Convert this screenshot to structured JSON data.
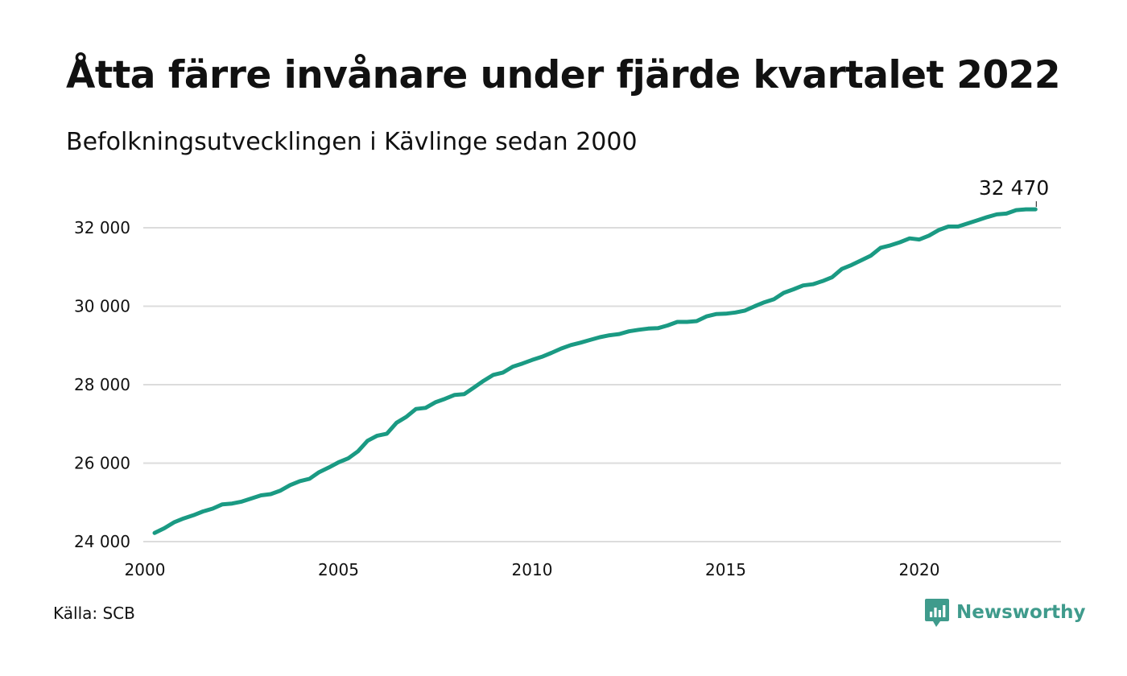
{
  "header": {
    "title": "Åtta färre invånare under fjärde kvartalet 2022",
    "subtitle": "Befolkningsutvecklingen i Kävlinge sedan 2000"
  },
  "footer": {
    "source": "Källa: SCB",
    "brand": "Newsworthy",
    "brand_icon": "newsworthy-chart-bubble-icon"
  },
  "colors": {
    "line": "#1a9a83",
    "grid": "#dcdcdc",
    "brand": "#3f9b8c",
    "text": "#111111"
  },
  "chart_data": {
    "type": "line",
    "title": "Åtta färre invånare under fjärde kvartalet 2022",
    "subtitle": "Befolkningsutvecklingen i Kävlinge sedan 2000",
    "xlabel": "",
    "ylabel": "",
    "xlim": [
      2000,
      2023.6
    ],
    "ylim": [
      24000,
      32800
    ],
    "x_ticks": [
      2000,
      2005,
      2010,
      2015,
      2020
    ],
    "x_tick_labels": [
      "2000",
      "2005",
      "2010",
      "2015",
      "2020"
    ],
    "y_ticks": [
      24000,
      26000,
      28000,
      30000,
      32000
    ],
    "y_tick_labels": [
      "24 000",
      "26 000",
      "28 000",
      "30 000",
      "32 000"
    ],
    "grid": "horizontal",
    "legend": "none",
    "end_label": "32 470",
    "series": [
      {
        "x": [
          2000.25,
          2000.5,
          2000.75,
          2001.0,
          2001.25,
          2001.5,
          2001.75,
          2002.0,
          2002.25,
          2002.5,
          2002.75,
          2003.0,
          2003.25,
          2003.5,
          2003.75,
          2004.0,
          2004.25,
          2004.5,
          2004.75,
          2005.0,
          2005.25,
          2005.5,
          2005.75,
          2006.0,
          2006.25,
          2006.5,
          2006.75,
          2007.0,
          2007.25,
          2007.5,
          2007.75,
          2008.0,
          2008.25,
          2008.5,
          2008.75,
          2009.0,
          2009.25,
          2009.5,
          2009.75,
          2010.0,
          2010.25,
          2010.5,
          2010.75,
          2011.0,
          2011.25,
          2011.5,
          2011.75,
          2012.0,
          2012.25,
          2012.5,
          2012.75,
          2013.0,
          2013.25,
          2013.5,
          2013.75,
          2014.0,
          2014.25,
          2014.5,
          2014.75,
          2015.0,
          2015.25,
          2015.5,
          2015.75,
          2016.0,
          2016.25,
          2016.5,
          2016.75,
          2017.0,
          2017.25,
          2017.5,
          2017.75,
          2018.0,
          2018.25,
          2018.5,
          2018.75,
          2019.0,
          2019.25,
          2019.5,
          2019.75,
          2020.0,
          2020.25,
          2020.5,
          2020.75,
          2021.0,
          2021.25,
          2021.5,
          2021.75,
          2022.0,
          2022.25,
          2022.5,
          2022.75,
          2023.0
        ],
        "values": [
          24220,
          24340,
          24490,
          24590,
          24670,
          24770,
          24840,
          24950,
          24970,
          25020,
          25100,
          25180,
          25210,
          25300,
          25440,
          25540,
          25600,
          25770,
          25890,
          26020,
          26120,
          26300,
          26570,
          26700,
          26750,
          27030,
          27180,
          27380,
          27410,
          27550,
          27640,
          27740,
          27760,
          27930,
          28100,
          28250,
          28310,
          28460,
          28540,
          28630,
          28710,
          28810,
          28920,
          29010,
          29070,
          29140,
          29210,
          29260,
          29290,
          29360,
          29400,
          29430,
          29440,
          29510,
          29600,
          29600,
          29620,
          29740,
          29800,
          29810,
          29840,
          29890,
          30000,
          30100,
          30180,
          30340,
          30430,
          30530,
          30560,
          30640,
          30740,
          30950,
          31050,
          31170,
          31290,
          31490,
          31550,
          31630,
          31730,
          31700,
          31800,
          31940,
          32030,
          32030,
          32110,
          32190,
          32270,
          32340,
          32360,
          32450,
          32470,
          32470
        ]
      }
    ]
  }
}
